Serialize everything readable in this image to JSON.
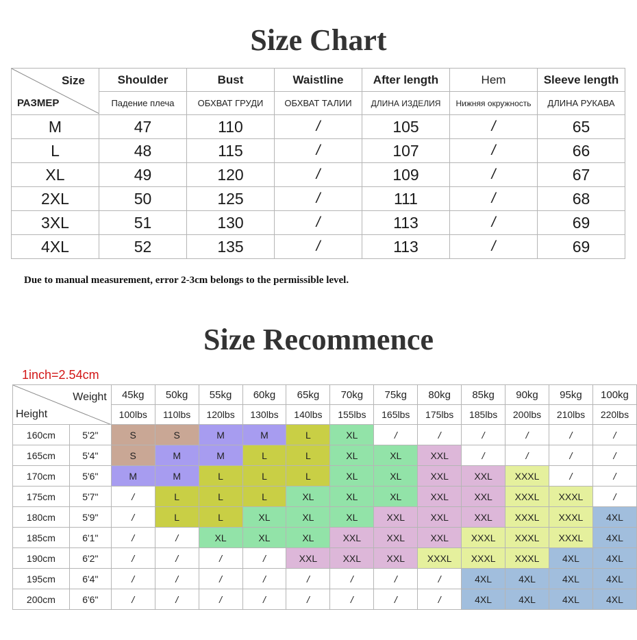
{
  "title": "Size Chart",
  "chart": {
    "corner_top": "Size",
    "corner_bottom": "РАЗМЕР",
    "columns": [
      {
        "en": "Shoulder",
        "ru": "Падение плеча"
      },
      {
        "en": "Bust",
        "ru": "ОБХВАТ ГРУДИ"
      },
      {
        "en": "Waistline",
        "ru": "ОБХВАТ ТАЛИИ"
      },
      {
        "en": "After length",
        "ru": "ДЛИНА ИЗДЕЛИЯ"
      },
      {
        "en": "Hem",
        "ru": "Нижняя окружность"
      },
      {
        "en": "Sleeve length",
        "ru": "ДЛИНА РУКАВА"
      }
    ],
    "rows": [
      [
        "M",
        "47",
        "110",
        "/",
        "105",
        "/",
        "65"
      ],
      [
        "L",
        "48",
        "115",
        "/",
        "107",
        "/",
        "66"
      ],
      [
        "XL",
        "49",
        "120",
        "/",
        "109",
        "/",
        "67"
      ],
      [
        "2XL",
        "50",
        "125",
        "/",
        "111",
        "/",
        "68"
      ],
      [
        "3XL",
        "51",
        "130",
        "/",
        "113",
        "/",
        "69"
      ],
      [
        "4XL",
        "52",
        "135",
        "/",
        "113",
        "/",
        "69"
      ]
    ]
  },
  "note": "Due to manual measurement, error 2-3cm belongs to the permissible level.",
  "title2": "Size Recommence",
  "inch_note": "1inch=2.54cm",
  "rec": {
    "corner_weight": "Weight",
    "corner_height": "Height",
    "kg": [
      "45kg",
      "50kg",
      "55kg",
      "60kg",
      "65kg",
      "70kg",
      "75kg",
      "80kg",
      "85kg",
      "90kg",
      "95kg",
      "100kg"
    ],
    "lbs": [
      "100lbs",
      "110lbs",
      "120lbs",
      "130lbs",
      "140lbs",
      "155lbs",
      "165lbs",
      "175lbs",
      "185lbs",
      "200lbs",
      "210lbs",
      "220lbs"
    ],
    "heights": [
      {
        "cm": "160cm",
        "ft": "5'2\""
      },
      {
        "cm": "165cm",
        "ft": "5'4\""
      },
      {
        "cm": "170cm",
        "ft": "5'6\""
      },
      {
        "cm": "175cm",
        "ft": "5'7\""
      },
      {
        "cm": "180cm",
        "ft": "5'9\""
      },
      {
        "cm": "185cm",
        "ft": "6'1\""
      },
      {
        "cm": "190cm",
        "ft": "6'2\""
      },
      {
        "cm": "195cm",
        "ft": "6'4\""
      },
      {
        "cm": "200cm",
        "ft": "6'6\""
      }
    ],
    "grid": [
      [
        "S",
        "S",
        "M",
        "M",
        "L",
        "XL",
        "/",
        "/",
        "/",
        "/",
        "/",
        "/"
      ],
      [
        "S",
        "M",
        "M",
        "L",
        "L",
        "XL",
        "XL",
        "XXL",
        "/",
        "/",
        "/",
        "/"
      ],
      [
        "M",
        "M",
        "L",
        "L",
        "L",
        "XL",
        "XL",
        "XXL",
        "XXL",
        "XXXL",
        "/",
        "/"
      ],
      [
        "/",
        "L",
        "L",
        "L",
        "XL",
        "XL",
        "XL",
        "XXL",
        "XXL",
        "XXXL",
        "XXXL",
        "/"
      ],
      [
        "/",
        "L",
        "L",
        "XL",
        "XL",
        "XL",
        "XXL",
        "XXL",
        "XXL",
        "XXXL",
        "XXXL",
        "4XL"
      ],
      [
        "/",
        "/",
        "XL",
        "XL",
        "XL",
        "XXL",
        "XXL",
        "XXL",
        "XXXL",
        "XXXL",
        "XXXL",
        "4XL"
      ],
      [
        "/",
        "/",
        "/",
        "/",
        "XXL",
        "XXL",
        "XXL",
        "XXXL",
        "XXXL",
        "XXXL",
        "4XL",
        "4XL"
      ],
      [
        "/",
        "/",
        "/",
        "/",
        "/",
        "/",
        "/",
        "/",
        "4XL",
        "4XL",
        "4XL",
        "4XL"
      ],
      [
        "/",
        "/",
        "/",
        "/",
        "/",
        "/",
        "/",
        "/",
        "4XL",
        "4XL",
        "4XL",
        "4XL"
      ]
    ],
    "size_colors": {
      "S": "#c9a795",
      "M": "#a79cf0",
      "L": "#c9cf45",
      "XL": "#92e3a8",
      "XXL": "#ddb7d9",
      "XXXL": "#e5f09d",
      "4XL": "#a1bedd"
    }
  }
}
